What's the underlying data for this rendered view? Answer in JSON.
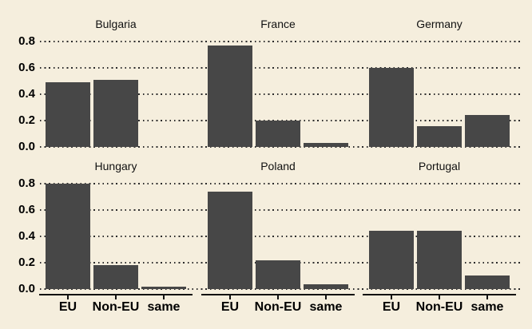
{
  "chart_data": {
    "type": "bar",
    "layout": "2x3 small multiples, shared axes",
    "categories": [
      "EU",
      "Non-EU",
      "same"
    ],
    "facets": [
      {
        "title": "Bulgaria",
        "values": [
          0.49,
          0.51,
          0.0
        ]
      },
      {
        "title": "France",
        "values": [
          0.77,
          0.2,
          0.03
        ]
      },
      {
        "title": "Germany",
        "values": [
          0.6,
          0.16,
          0.24
        ]
      },
      {
        "title": "Hungary",
        "values": [
          0.8,
          0.18,
          0.02
        ]
      },
      {
        "title": "Poland",
        "values": [
          0.74,
          0.22,
          0.035
        ]
      },
      {
        "title": "Portugal",
        "values": [
          0.44,
          0.44,
          0.1
        ]
      }
    ],
    "y_ticks": [
      "0.8",
      "0.6",
      "0.4",
      "0.2",
      "0.0"
    ],
    "ylim": [
      0,
      0.85
    ],
    "xlabel": "",
    "ylabel": "",
    "grid": "dotted horizontal lines at 0.0, 0.2, 0.4, 0.6, 0.8",
    "legend": "none",
    "bar_color": "#474747",
    "background_color": "#f5eedd",
    "axis_color": "#111111"
  }
}
